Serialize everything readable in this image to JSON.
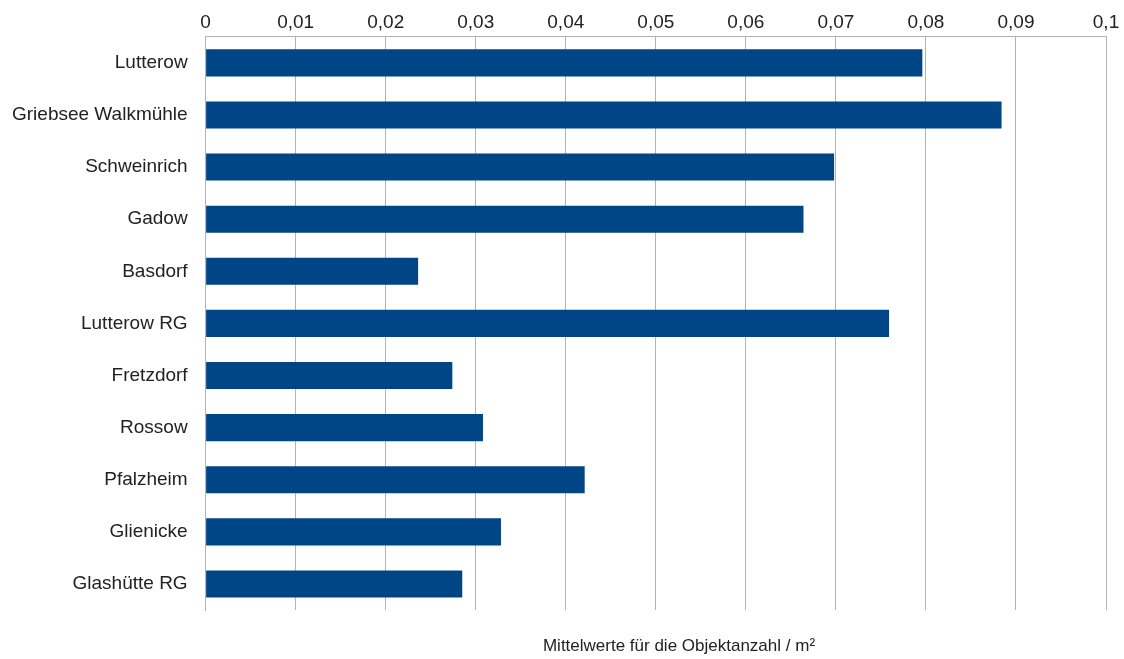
{
  "chart_data": {
    "type": "bar",
    "orientation": "horizontal",
    "xlabel": "Mittelwerte für die Objektanzahl / m²",
    "categories": [
      "Lutterow",
      "Griebsee Walkmühle",
      "Schweinrich",
      "Gadow",
      "Basdorf",
      "Lutterow RG",
      "Fretzdorf",
      "Rossow",
      "Pfalzheim",
      "Glienicke",
      "Glashütte RG"
    ],
    "values": [
      0.0796,
      0.0884,
      0.0698,
      0.0664,
      0.0236,
      0.0759,
      0.0274,
      0.0308,
      0.0421,
      0.0328,
      0.0285
    ],
    "color": "#004586",
    "xlim": [
      0,
      0.1
    ],
    "xticks": [
      0,
      {
        "value": 0.01,
        "label": "0,01"
      },
      {
        "value": 0.02,
        "label": "0,02"
      },
      {
        "value": 0.03,
        "label": "0,03"
      },
      {
        "value": 0.04,
        "label": "0,04"
      },
      {
        "value": 0.05,
        "label": "0,05"
      },
      {
        "value": 0.06,
        "label": "0,06"
      },
      {
        "value": 0.07,
        "label": "0,07"
      },
      {
        "value": 0.08,
        "label": "0,08"
      },
      {
        "value": 0.09,
        "label": "0,09"
      },
      {
        "value": 0.1,
        "label": "0,1"
      }
    ],
    "grid": "x",
    "legend": false
  }
}
